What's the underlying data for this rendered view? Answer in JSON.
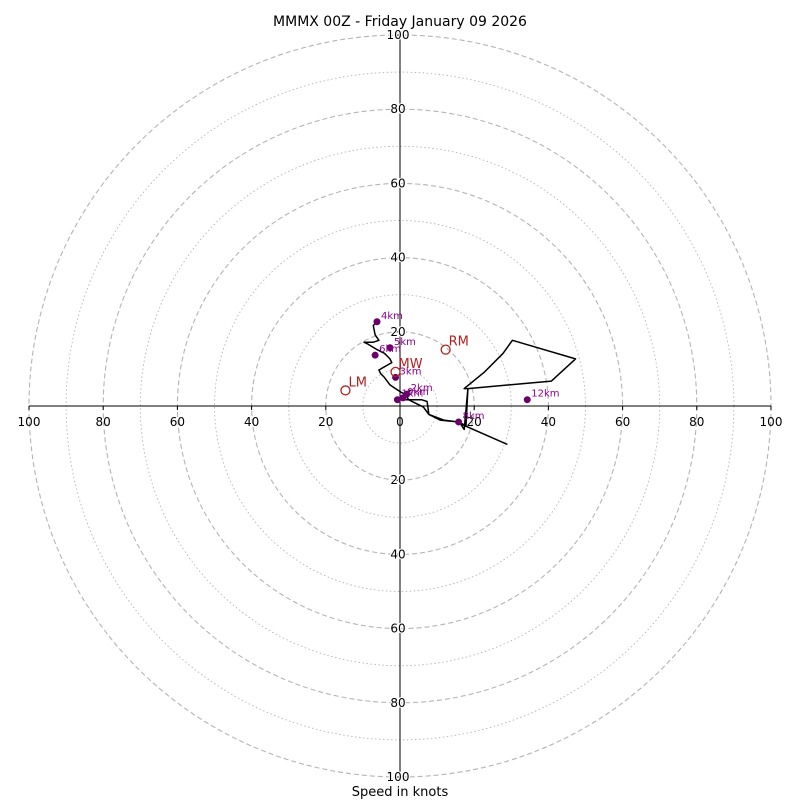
{
  "chart_data": {
    "type": "hodograph",
    "title": "MMMX 00Z - Friday January 09 2026",
    "xlabel": "Speed in knots",
    "range_max": 100,
    "ring_step_dashed": 20,
    "ring_step_dotted": 10,
    "x_tick_labels": [
      "100",
      "80",
      "60",
      "40",
      "20",
      "0",
      "20",
      "40",
      "60",
      "80",
      "100"
    ],
    "y_tick_labels_up": [
      "20",
      "40",
      "60",
      "80",
      "100"
    ],
    "y_tick_labels_down": [
      "20",
      "40",
      "60",
      "80",
      "100"
    ],
    "colors": {
      "trace": "#000000",
      "height_marker": "#6b006b",
      "height_label": "#8b008b",
      "motion": "#b22222",
      "ring": "#b4b4b4",
      "axis": "#000000"
    },
    "trace": [
      [
        -0.7,
        1.7
      ],
      [
        0.8,
        2.2
      ],
      [
        1.8,
        3.2
      ],
      [
        2.3,
        3.7
      ],
      [
        2.8,
        4.2
      ],
      [
        1.8,
        3.2
      ],
      [
        0.8,
        1.7
      ],
      [
        5.8,
        1.7
      ],
      [
        7.3,
        1.2
      ],
      [
        7.8,
        -2.3
      ],
      [
        11.8,
        -3.8
      ],
      [
        15.8,
        -4.3
      ],
      [
        16.3,
        -4.8
      ],
      [
        28.8,
        -10.3
      ],
      [
        16.3,
        -4.8
      ],
      [
        17.3,
        -6.3
      ],
      [
        18.3,
        4.7
      ],
      [
        40.8,
        6.7
      ],
      [
        47.3,
        12.7
      ],
      [
        30.3,
        17.7
      ],
      [
        27.8,
        14.2
      ],
      [
        22.8,
        9.2
      ],
      [
        17.3,
        4.7
      ],
      [
        18.3,
        4.7
      ],
      [
        17.8,
        -5.3
      ],
      [
        15.8,
        -4.3
      ],
      [
        10.8,
        -3.8
      ],
      [
        7.8,
        -2.3
      ],
      [
        6.3,
        -0.3
      ],
      [
        2.3,
        1.7
      ],
      [
        1.8,
        2.7
      ],
      [
        1.3,
        3.2
      ],
      [
        0.3,
        3.7
      ],
      [
        -1.2,
        4.7
      ],
      [
        -2.7,
        5.7
      ],
      [
        -4.2,
        7.7
      ],
      [
        -5.2,
        8.7
      ],
      [
        -5.7,
        9.7
      ],
      [
        -2.2,
        11.7
      ],
      [
        -2.7,
        12.7
      ],
      [
        -4.2,
        14.2
      ],
      [
        -6.2,
        15.2
      ],
      [
        -8.7,
        16.7
      ],
      [
        -9.7,
        17.2
      ],
      [
        -7.2,
        17.2
      ],
      [
        -5.7,
        17.7
      ],
      [
        -6.7,
        19.2
      ],
      [
        -7.2,
        21.7
      ],
      [
        -6.2,
        22.7
      ],
      [
        -6.7,
        23.2
      ]
    ],
    "height_markers": [
      {
        "label": "1km",
        "u": -0.7,
        "v": 1.7
      },
      {
        "label": "0km",
        "u": 0.8,
        "v": 2.2
      },
      {
        "label": "2km",
        "u": 1.8,
        "v": 3.2
      },
      {
        "label": "3km",
        "u": -1.2,
        "v": 7.7
      },
      {
        "label": "4km",
        "u": -6.2,
        "v": 22.7
      },
      {
        "label": "5km",
        "u": -2.7,
        "v": 15.7
      },
      {
        "label": "6km",
        "u": -6.7,
        "v": 13.7
      },
      {
        "label": "8km",
        "u": 15.8,
        "v": -4.3
      },
      {
        "label": "12km",
        "u": 34.3,
        "v": 1.7
      }
    ],
    "storm_motion": [
      {
        "label": "RM",
        "u": 12.3,
        "v": 15.2
      },
      {
        "label": "MW",
        "u": -1.2,
        "v": 9.2
      },
      {
        "label": "LM",
        "u": -14.7,
        "v": 4.2
      }
    ]
  }
}
